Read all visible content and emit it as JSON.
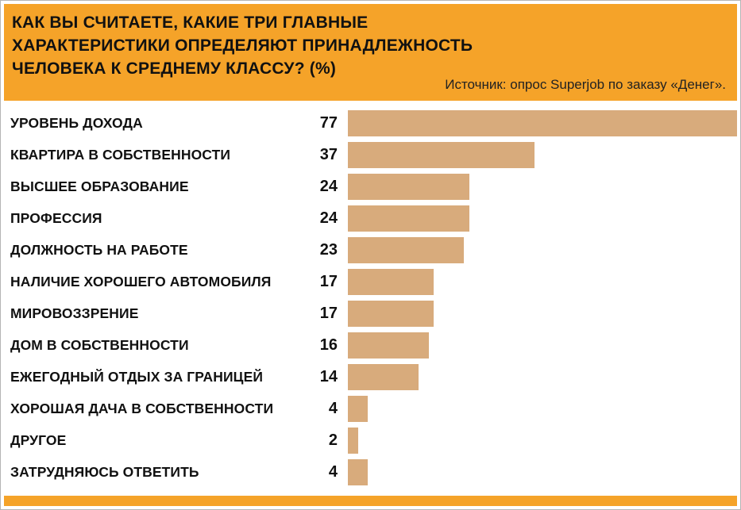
{
  "header": {
    "title": "КАК ВЫ СЧИТАЕТЕ, КАКИЕ ТРИ ГЛАВНЫЕ ХАРАКТЕРИСТИКИ ОПРЕДЕЛЯЮТ ПРИНАДЛЕЖНОСТЬ ЧЕЛОВЕКА К СРЕДНЕМУ КЛАССУ? (%)",
    "source": "Источник: опрос Superjob по заказу «Денег»."
  },
  "colors": {
    "header_bg": "#f5a329",
    "bar": "#d8ab7c",
    "text": "#111111"
  },
  "chart_data": {
    "type": "bar",
    "orientation": "horizontal",
    "title": "КАК ВЫ СЧИТАЕТЕ, КАКИЕ ТРИ ГЛАВНЫЕ ХАРАКТЕРИСТИКИ ОПРЕДЕЛЯЮТ ПРИНАДЛЕЖНОСТЬ ЧЕЛОВЕКА К СРЕДНЕМУ КЛАССУ? (%)",
    "source": "Источник: опрос Superjob по заказу «Денег».",
    "value_unit": "%",
    "xlim": [
      0,
      77
    ],
    "legend": "none",
    "grid": false,
    "categories": [
      "УРОВЕНЬ ДОХОДА",
      "КВАРТИРА В СОБСТВЕННОСТИ",
      "ВЫСШЕЕ ОБРАЗОВАНИЕ",
      "ПРОФЕССИЯ",
      "ДОЛЖНОСТЬ НА РАБОТЕ",
      "НАЛИЧИЕ ХОРОШЕГО АВТОМОБИЛЯ",
      "МИРОВОЗЗРЕНИЕ",
      "ДОМ В СОБСТВЕННОСТИ",
      "ЕЖЕГОДНЫЙ ОТДЫХ ЗА ГРАНИЦЕЙ",
      "ХОРОШАЯ ДАЧА В СОБСТВЕННОСТИ",
      "ДРУГОЕ",
      "ЗАТРУДНЯЮСЬ ОТВЕТИТЬ"
    ],
    "values": [
      77,
      37,
      24,
      24,
      23,
      17,
      17,
      16,
      14,
      4,
      2,
      4
    ]
  }
}
